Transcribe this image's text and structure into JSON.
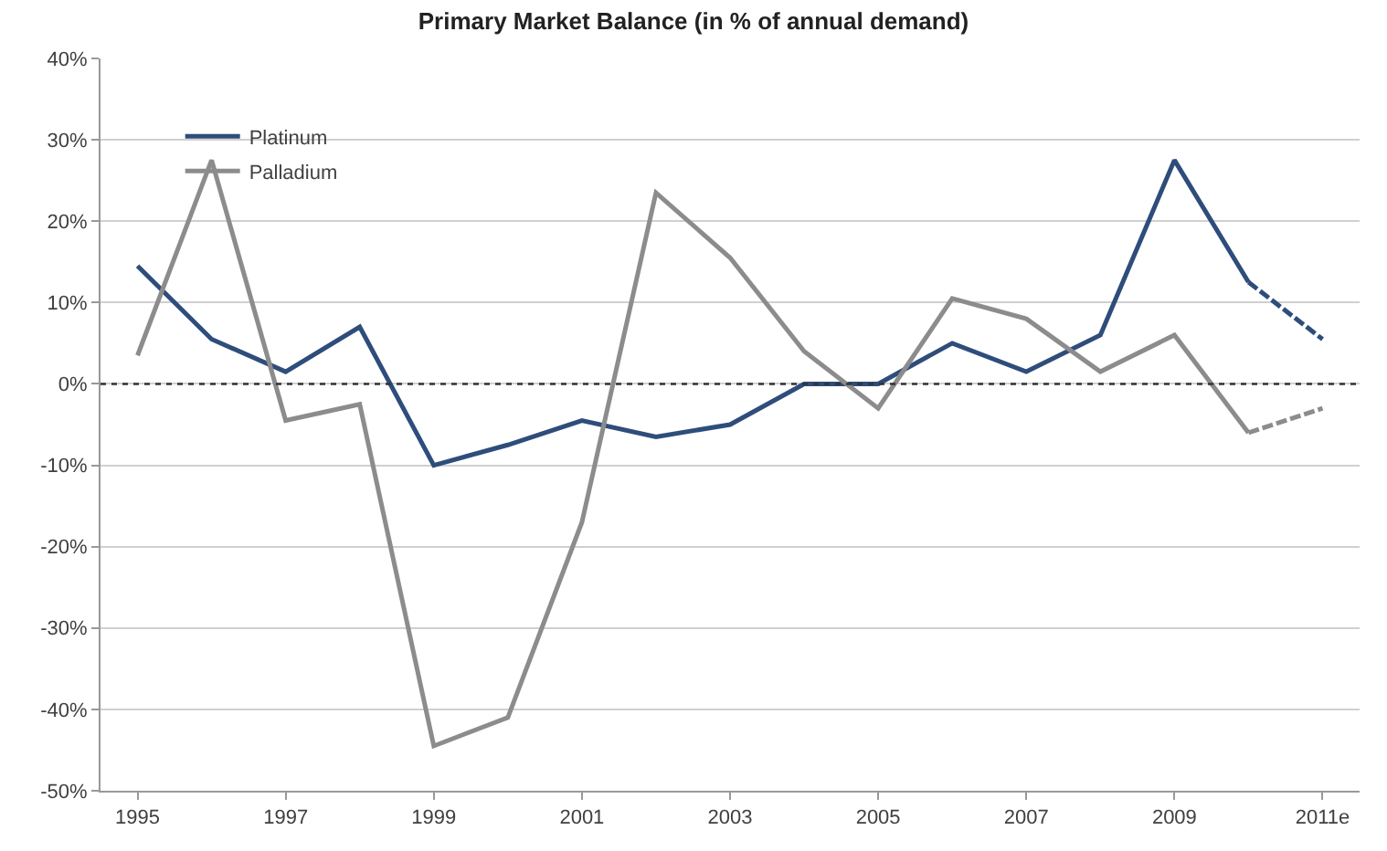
{
  "chart_data": {
    "type": "line",
    "title": "Primary Market Balance (in % of annual demand)",
    "categories": [
      "1995",
      null,
      "1997",
      null,
      "1999",
      null,
      "2001",
      null,
      "2003",
      null,
      "2005",
      null,
      "2007",
      null,
      "2009",
      null,
      "2011e"
    ],
    "series": [
      {
        "name": "Platinum",
        "color": "#2e4d7b",
        "values": [
          14.5,
          5.5,
          1.5,
          7,
          -10,
          -7.5,
          -4.5,
          -6.5,
          -5,
          0,
          0,
          5,
          1.5,
          6,
          27.5,
          12.5,
          null
        ]
      },
      {
        "name": "Palladium",
        "color": "#8c8c8c",
        "values": [
          3.5,
          27.5,
          -4.5,
          -2.5,
          -44.5,
          -41,
          -17,
          23.5,
          15.5,
          4,
          -3,
          10.5,
          8,
          1.5,
          6,
          -6,
          null
        ]
      },
      {
        "color": "#2e4d7b",
        "line_style": "dashed",
        "values": [
          null,
          null,
          null,
          null,
          null,
          null,
          null,
          null,
          null,
          null,
          null,
          null,
          null,
          null,
          null,
          12.5,
          5.5
        ]
      },
      {
        "color": "#8c8c8c",
        "line_style": "dashed",
        "values": [
          null,
          null,
          null,
          null,
          null,
          null,
          null,
          null,
          null,
          null,
          null,
          null,
          null,
          null,
          null,
          -6,
          -3
        ]
      }
    ],
    "ylim": [
      -50,
      40
    ],
    "yticks": [
      {
        "value": -50,
        "label": "-50%"
      },
      {
        "value": -40,
        "label": "-40%"
      },
      {
        "value": -30,
        "label": "-30%"
      },
      {
        "value": -20,
        "label": "-20%"
      },
      {
        "value": -10,
        "label": "-10%"
      },
      {
        "value": 0,
        "label": "0%"
      },
      {
        "value": 10,
        "label": "10%"
      },
      {
        "value": 20,
        "label": "20%"
      },
      {
        "value": 30,
        "label": "30%"
      },
      {
        "value": 40,
        "label": "40%"
      }
    ],
    "ref_lines": [
      {
        "axis": "y",
        "value": 0,
        "color": "#333333",
        "line_style": "dotted"
      }
    ],
    "grid": "y",
    "legend": "top left",
    "marker": "none",
    "line_style": "solid"
  }
}
